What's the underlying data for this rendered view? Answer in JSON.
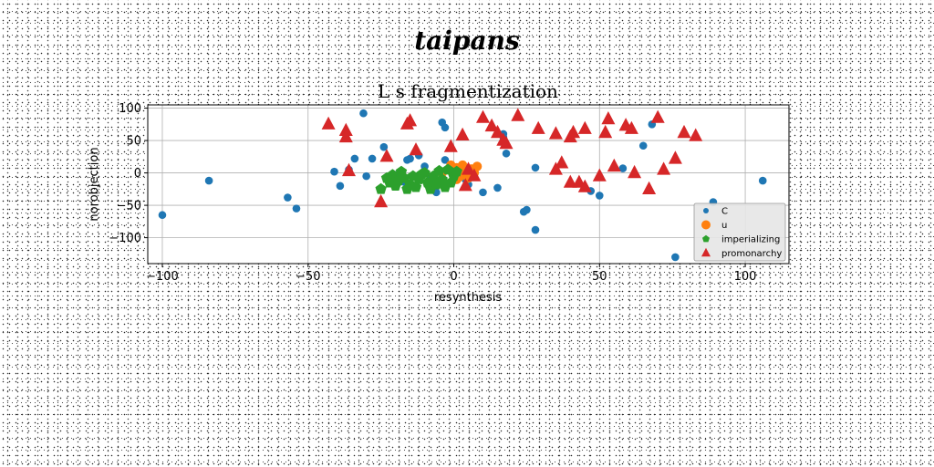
{
  "super_title": "taipans",
  "chart_data": {
    "type": "scatter",
    "title": "L s fragmentization",
    "xlabel": "resynthesis",
    "ylabel": "norobjection",
    "xlim": [
      -105,
      115
    ],
    "ylim": [
      -140,
      105
    ],
    "xticks": [
      -100,
      -50,
      0,
      50,
      100
    ],
    "yticks": [
      -100,
      -50,
      0,
      50,
      100
    ],
    "xtick_labels": [
      "−100",
      "−50",
      "0",
      "50",
      "100"
    ],
    "ytick_labels": [
      "−100",
      "−50",
      "0",
      "50",
      "100"
    ],
    "grid": true,
    "legend_position": "bottom-right",
    "series": [
      {
        "name": "C",
        "marker": "circle",
        "color": "#1f77b4",
        "points": [
          [
            -100,
            -65
          ],
          [
            -84,
            -12
          ],
          [
            -57,
            -38
          ],
          [
            -54,
            -55
          ],
          [
            -41,
            2
          ],
          [
            -39,
            -20
          ],
          [
            -36,
            5
          ],
          [
            -34,
            22
          ],
          [
            -31,
            92
          ],
          [
            -30,
            -5
          ],
          [
            -28,
            22
          ],
          [
            -24,
            40
          ],
          [
            -20,
            -3
          ],
          [
            -17,
            -14
          ],
          [
            -16,
            20
          ],
          [
            -15,
            22
          ],
          [
            -12,
            27
          ],
          [
            -10,
            10
          ],
          [
            -8,
            -10
          ],
          [
            -6,
            -30
          ],
          [
            -5,
            -15
          ],
          [
            -4,
            78
          ],
          [
            -3,
            70
          ],
          [
            -3,
            20
          ],
          [
            0,
            -2
          ],
          [
            2,
            -5
          ],
          [
            3,
            5
          ],
          [
            4,
            -10
          ],
          [
            5,
            -18
          ],
          [
            7,
            -5
          ],
          [
            10,
            -30
          ],
          [
            15,
            -23
          ],
          [
            17,
            55
          ],
          [
            17,
            60
          ],
          [
            18,
            30
          ],
          [
            24,
            -60
          ],
          [
            25,
            -57
          ],
          [
            28,
            -88
          ],
          [
            28,
            8
          ],
          [
            47,
            -28
          ],
          [
            50,
            -35
          ],
          [
            58,
            7
          ],
          [
            65,
            42
          ],
          [
            68,
            75
          ],
          [
            76,
            -130
          ],
          [
            89,
            -45
          ],
          [
            106,
            -12
          ]
        ]
      },
      {
        "name": "u",
        "marker": "circle",
        "color": "#ff7f0e",
        "points": [
          [
            -4,
            0
          ],
          [
            -2,
            5
          ],
          [
            0,
            -3
          ],
          [
            1,
            8
          ],
          [
            2,
            -6
          ],
          [
            3,
            12
          ],
          [
            4,
            2
          ],
          [
            5,
            -8
          ],
          [
            6,
            6
          ],
          [
            7,
            0
          ],
          [
            8,
            10
          ],
          [
            -1,
            12
          ],
          [
            1,
            -10
          ]
        ]
      },
      {
        "name": "imperializing",
        "marker": "pentagon",
        "color": "#2ca02c",
        "points": [
          [
            -25,
            -25
          ],
          [
            -22,
            -15
          ],
          [
            -21,
            -3
          ],
          [
            -20,
            -20
          ],
          [
            -18,
            2
          ],
          [
            -16,
            -25
          ],
          [
            -15,
            -18
          ],
          [
            -14,
            -5
          ],
          [
            -13,
            -22
          ],
          [
            -12,
            -10
          ],
          [
            -10,
            0
          ],
          [
            -9,
            -15
          ],
          [
            -8,
            -25
          ],
          [
            -7,
            -5
          ],
          [
            -6,
            -18
          ],
          [
            -5,
            3
          ],
          [
            -4,
            -10
          ],
          [
            -3,
            -22
          ],
          [
            -2,
            5
          ],
          [
            -1,
            -15
          ],
          [
            0,
            -5
          ],
          [
            1,
            2
          ],
          [
            -11,
            -2
          ],
          [
            -17,
            -8
          ],
          [
            -23,
            -8
          ],
          [
            -19,
            -12
          ]
        ]
      },
      {
        "name": "promonarchy",
        "marker": "triangle",
        "color": "#d62728",
        "points": [
          [
            -43,
            75
          ],
          [
            -37,
            65
          ],
          [
            -37,
            55
          ],
          [
            -36,
            3
          ],
          [
            -25,
            -45
          ],
          [
            -23,
            25
          ],
          [
            -16,
            75
          ],
          [
            -15,
            80
          ],
          [
            -13,
            35
          ],
          [
            -1,
            40
          ],
          [
            3,
            58
          ],
          [
            4,
            -20
          ],
          [
            5,
            5
          ],
          [
            7,
            -5
          ],
          [
            10,
            85
          ],
          [
            13,
            72
          ],
          [
            15,
            62
          ],
          [
            17,
            50
          ],
          [
            18,
            45
          ],
          [
            22,
            88
          ],
          [
            29,
            68
          ],
          [
            35,
            5
          ],
          [
            35,
            60
          ],
          [
            37,
            15
          ],
          [
            40,
            -15
          ],
          [
            40,
            55
          ],
          [
            41,
            62
          ],
          [
            43,
            -15
          ],
          [
            45,
            -22
          ],
          [
            45,
            68
          ],
          [
            50,
            -5
          ],
          [
            52,
            62
          ],
          [
            53,
            83
          ],
          [
            55,
            10
          ],
          [
            59,
            73
          ],
          [
            61,
            68
          ],
          [
            62,
            0
          ],
          [
            67,
            -25
          ],
          [
            70,
            85
          ],
          [
            72,
            5
          ],
          [
            76,
            22
          ],
          [
            79,
            62
          ],
          [
            83,
            57
          ]
        ]
      }
    ]
  }
}
